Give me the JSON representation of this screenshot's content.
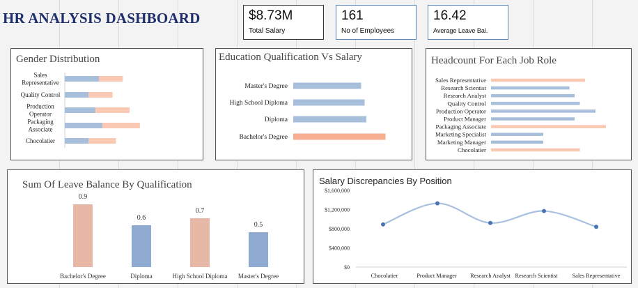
{
  "header": {
    "title": "HR ANALYSIS DASHBOARD"
  },
  "kpis": [
    {
      "value": "$8.73M",
      "label": "Total Salary"
    },
    {
      "value": "161",
      "label": "No of Employees"
    },
    {
      "value": "16.42",
      "label": "Average Leave Bal."
    }
  ],
  "colors": {
    "blue": "#a8bfdc",
    "peach": "#f9c9b3",
    "orange": "#f6ad90",
    "dark_blue": "#8eaad0",
    "line": "#a8c1df",
    "point": "#4a73b3",
    "title": "#1f2f6b"
  },
  "chart_data": [
    {
      "type": "bar",
      "orientation": "horizontal",
      "stacked": true,
      "title": "Gender Distribution",
      "categories": [
        "Sales Representative",
        "Quality Control",
        "Production Operator",
        "Packaging Associate",
        "Chocolatier"
      ],
      "category_lines": [
        [
          "Sales",
          "Representative"
        ],
        [
          "Quality Control"
        ],
        [
          "Production",
          "Operator"
        ],
        [
          "Packaging",
          "Associate"
        ],
        [
          "Chocolatier"
        ]
      ],
      "series": [
        {
          "values": [
            10,
            7,
            9,
            11,
            7
          ]
        },
        {
          "values": [
            7,
            7,
            10,
            11,
            8
          ]
        }
      ]
    },
    {
      "type": "bar",
      "orientation": "horizontal",
      "title": "Education Qualification Vs Salary",
      "categories": [
        "Master's Degree",
        "High School Diploma",
        "Diploma",
        "Bachelor's Degree"
      ],
      "values": [
        1.95,
        2.05,
        2.1,
        2.65
      ],
      "highlight": "Bachelor's Degree"
    },
    {
      "type": "bar",
      "orientation": "horizontal",
      "title": "Headcount For Each Job Role",
      "categories": [
        "Sales Representative",
        "Research Scientist",
        "Research Analyst",
        "Quality Control",
        "Production Operator",
        "Product Manager",
        "Packaging Associate",
        "Marketing Specialist",
        "Marketing Manager",
        "Chocolatier"
      ],
      "values": [
        18,
        15,
        16,
        17,
        20,
        16,
        22,
        10,
        10,
        17
      ],
      "highlight": [
        "Sales Representative",
        "Packaging Associate",
        "Chocolatier"
      ]
    },
    {
      "type": "bar",
      "title": "Sum Of Leave Balance By Qualification",
      "categories": [
        "Bachelor's Degree",
        "Diploma",
        "High School Diploma",
        "Master's Degree"
      ],
      "values": [
        0.9,
        0.6,
        0.7,
        0.5
      ],
      "data_labels": [
        "0.9",
        "0.6",
        "0.7",
        "0.5"
      ],
      "ylim": [
        0,
        1
      ]
    },
    {
      "type": "line",
      "title": "Salary Discrepancies By Position",
      "categories": [
        "Chocolatier",
        "Product Manager",
        "Research Analyst",
        "Research Scientist",
        "Sales Representative"
      ],
      "values": [
        890000,
        1330000,
        920000,
        1170000,
        840000
      ],
      "ylim": [
        0,
        1600000
      ],
      "yticks": [
        0,
        400000,
        800000,
        1200000,
        1600000
      ],
      "ytick_labels": [
        "$0",
        "$400,000",
        "$800,000",
        "$1,200,000",
        "$1,600,000"
      ],
      "smooth": true
    }
  ]
}
